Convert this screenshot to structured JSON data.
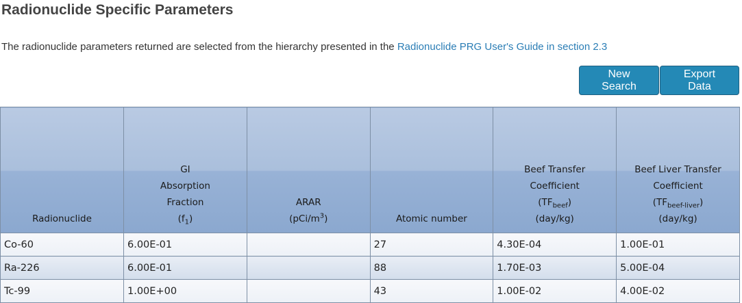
{
  "title": "Radionuclide Specific Parameters",
  "intro": {
    "text": "The radionuclide parameters returned are selected from the hierarchy presented in the ",
    "link": "Radionuclide PRG User's Guide in section 2.3"
  },
  "buttons": {
    "new_search": "New Search",
    "export": "Export Data"
  },
  "table": {
    "headers": [
      {
        "lines": [
          {
            "t": "Radionuclide"
          }
        ]
      },
      {
        "lines": [
          {
            "t": "GI"
          },
          {
            "t": "Absorption"
          },
          {
            "t": "Fraction"
          },
          {
            "t": "(f",
            "sub": "1",
            "after": ")"
          }
        ]
      },
      {
        "lines": [
          {
            "t": "ARAR"
          },
          {
            "t": "(pCi/m",
            "sup": "3",
            "after": ")"
          }
        ]
      },
      {
        "lines": [
          {
            "t": "Atomic number"
          }
        ]
      },
      {
        "lines": [
          {
            "t": "Beef Transfer"
          },
          {
            "t": "Coefficient"
          },
          {
            "t": "(TF",
            "sub": "beef",
            "after": ")"
          },
          {
            "t": "(day/kg)"
          }
        ]
      },
      {
        "lines": [
          {
            "t": "Beef Liver Transfer"
          },
          {
            "t": "Coefficient"
          },
          {
            "t": "(TF",
            "sub": "beef-liver",
            "after": ")"
          },
          {
            "t": "(day/kg)"
          }
        ]
      }
    ],
    "rows": [
      [
        "Co-60",
        "6.00E-01",
        "",
        "27",
        "4.30E-04",
        "1.00E-01"
      ],
      [
        "Ra-226",
        "6.00E-01",
        "",
        "88",
        "1.70E-03",
        "5.00E-04"
      ],
      [
        "Tc-99",
        "1.00E+00",
        "",
        "43",
        "1.00E-02",
        "4.00E-02"
      ]
    ]
  }
}
